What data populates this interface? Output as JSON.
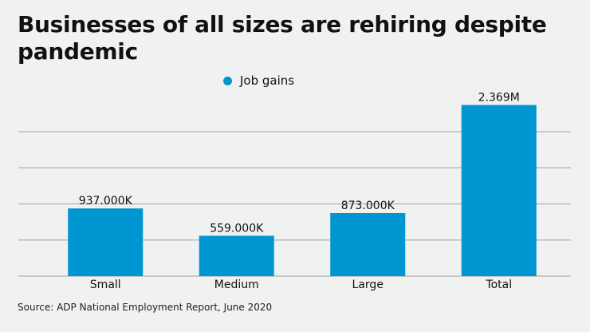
{
  "chart_data": {
    "type": "bar",
    "title": "Businesses of all sizes are rehiring despite pandemic",
    "categories": [
      "Small",
      "Medium",
      "Large",
      "Total"
    ],
    "series": [
      {
        "name": "Job gains",
        "values": [
          937000,
          559000,
          873000,
          2369000
        ],
        "color": "#0096d1"
      }
    ],
    "data_labels": [
      "937.000K",
      "559.000K",
      "873.000K",
      "2.369M"
    ],
    "xlabel": "",
    "ylabel": "",
    "ylim": [
      0,
      2400000
    ],
    "gridlines": [
      0,
      500000,
      1000000,
      1500000,
      2000000
    ],
    "grid": true,
    "y_tick_labels_shown": false,
    "legend_placement": "top-center",
    "source": "Source: ADP National Employment Report, June 2020"
  }
}
